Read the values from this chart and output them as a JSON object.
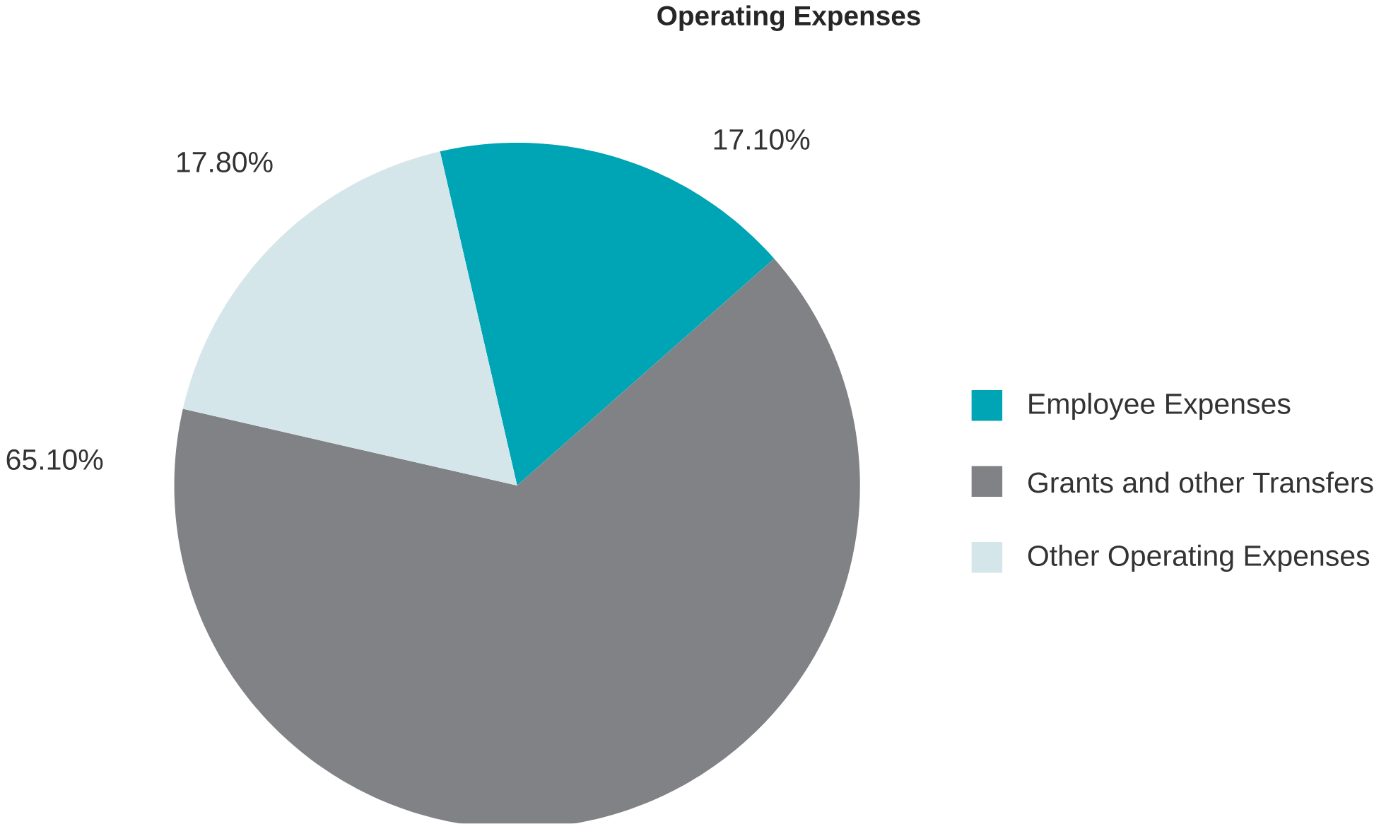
{
  "chart_data": {
    "type": "pie",
    "title": "Operating Expenses",
    "categories": [
      "Employee Expenses",
      "Grants and other Transfers",
      "Other Operating Expenses"
    ],
    "values": [
      17.1,
      65.1,
      17.8
    ],
    "value_labels": [
      "17.10%",
      "65.10%",
      "17.80%"
    ],
    "colors": [
      "#00a5b5",
      "#808285",
      "#d5e6ea"
    ],
    "legend": "right"
  }
}
